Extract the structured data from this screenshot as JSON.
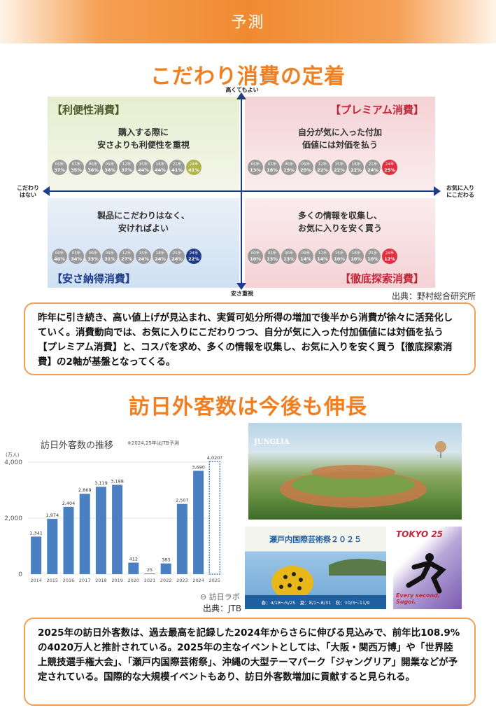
{
  "header": {
    "title": "予測"
  },
  "section1": {
    "title": "こだわり消費の定着",
    "axis": {
      "top": "高くてもよい",
      "bottom": "安さ重視",
      "left": "こだわり\nはない",
      "right": "お気に入り\nにこだわる"
    },
    "quadrants": {
      "tl": {
        "label": "【利便性消費】",
        "desc": "購入する際に\n安さよりも利便性を重視",
        "items": [
          [
            "00年",
            "37%"
          ],
          [
            "03年",
            "35%"
          ],
          [
            "06年",
            "36%"
          ],
          [
            "09年",
            "34%"
          ],
          [
            "12年",
            "37%"
          ],
          [
            "15年",
            "44%"
          ],
          [
            "18年",
            "44%"
          ],
          [
            "21年",
            "41%"
          ],
          [
            "24年",
            "41%"
          ]
        ]
      },
      "tr": {
        "label": "【プレミアム消費】",
        "desc": "自分が気に入った付加\n価値には対価を払う",
        "items": [
          [
            "00年",
            "13%"
          ],
          [
            "03年",
            "18%"
          ],
          [
            "06年",
            "19%"
          ],
          [
            "09年",
            "20%"
          ],
          [
            "12年",
            "22%"
          ],
          [
            "15年",
            "22%"
          ],
          [
            "18年",
            "22%"
          ],
          [
            "21年",
            "24%"
          ],
          [
            "24年",
            "25%"
          ]
        ]
      },
      "bl": {
        "label": "【安さ納得消費】",
        "desc": "製品にこだわりはなく、\n安ければよい",
        "items": [
          [
            "00年",
            "40%"
          ],
          [
            "03年",
            "34%"
          ],
          [
            "06年",
            "33%"
          ],
          [
            "09年",
            "31%"
          ],
          [
            "12年",
            "27%"
          ],
          [
            "15年",
            "24%"
          ],
          [
            "18年",
            "24%"
          ],
          [
            "21年",
            "24%"
          ],
          [
            "24年",
            "22%"
          ]
        ]
      },
      "br": {
        "label": "【徹底探索消費】",
        "desc": "多くの情報を収集し、\nお気に入りを安く買う",
        "items": [
          [
            "00年",
            "10%"
          ],
          [
            "03年",
            "13%"
          ],
          [
            "06年",
            "13%"
          ],
          [
            "09年",
            "14%"
          ],
          [
            "12年",
            "14%"
          ],
          [
            "15年",
            "10%"
          ],
          [
            "18年",
            "10%"
          ],
          [
            "21年",
            "10%"
          ],
          [
            "24年",
            "12%"
          ]
        ]
      }
    },
    "source": "出典：野村総合研究所",
    "text": "昨年に引き続き、高い値上げが見込まれ、実質可処分所得の増加で後半から消費が徐々に活発化していく。消費動向では、お気に入りにこだわりつつ、自分が気に入った付加価値には対価を払う【プレミアム消費】と、コスパを求め、多くの情報を収集し、お気に入りを安く買う【徹底探索消費】の2軸が基盤となってくる。"
  },
  "section2": {
    "title": "訪日外客数は今後も伸長",
    "chart_title": "訪日外客数の推移",
    "chart_note": "※2024,25年はJTB予測",
    "chart_unit": "(万人)",
    "chart_brand": "訪日ラボ",
    "source": "出典：JTB",
    "photo_caption1": "JUNGLIA",
    "photo_caption2": "瀬戸内国際芸術祭２０２５",
    "photo_caption2_sub": "春：4/18〜5/25　夏：8/1〜8/31　秋：10/3〜11/9",
    "photo_caption3": "TOKYO 25",
    "photo_caption3_sub": "Every second, Sugoi.",
    "text": "2025年の訪日外客数は、過去最高を記録した2024年からさらに伸びる見込みで、前年比108.9%の4020万人と推計されている。2025年の主なイベントとしては、「大阪・関西万博」や「世界陸上競技選手権大会」、「瀬戸内国際芸術祭」、沖縄の大型テーマパーク「ジャングリア」開業などが予定されている。国際的な大規模イベントもあり、訪日外客数増加に貢献すると見られる。"
  },
  "chart_data": {
    "type": "bar",
    "categories": [
      "2014",
      "2015",
      "2016",
      "2017",
      "2018",
      "2019",
      "2020",
      "2021",
      "2022",
      "2023",
      "2024",
      "2025"
    ],
    "values": [
      1341,
      1974,
      2404,
      2869,
      3119,
      3188,
      412,
      25,
      383,
      2507,
      3690,
      4020
    ],
    "value_labels": [
      "1,341",
      "1,974",
      "2,404",
      "2,869",
      "3,119",
      "3,188",
      "412",
      "25",
      "383",
      "2,507",
      "3,690",
      "4,020?"
    ],
    "ylim": [
      0,
      4000
    ],
    "yticks": [
      "0",
      "2,000",
      "4,000"
    ],
    "forecast_index": 11,
    "title": "訪日外客数の推移",
    "color": "#4a7fc1"
  }
}
